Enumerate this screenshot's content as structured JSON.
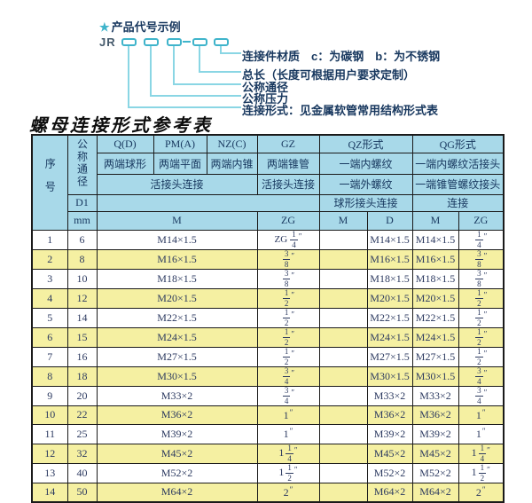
{
  "colors": {
    "header-bg": "#a8d9e9",
    "alt-bg": "#f5f0a2",
    "border": "#1a1a1a",
    "accent": "#3fb4cb",
    "line": "#8ad6e4",
    "navy": "#17375e",
    "cell-text": "#2c3a60"
  },
  "diagram": {
    "star": "★",
    "heading": "产品代号示例",
    "code_prefix": "JR",
    "dash": "–",
    "labels": [
      "连接件材质　c：为碳钢　b：为不锈钢",
      "总长（长度可根据用户要求定制）",
      "公称通径",
      "公称压力",
      "连接形式：见金属软管常用结构形式表"
    ]
  },
  "table": {
    "title": "螺母连接形式参考表",
    "inch_mark": "″",
    "header": {
      "seq": "序号",
      "dn": "公称通径",
      "d1": "D1",
      "mm": "mm",
      "groups": [
        "Q(D)",
        "PM(A)",
        "NZ(C)",
        "GZ",
        "QZ形式",
        "QG形式"
      ],
      "ends": [
        "两端球形",
        "两端平面",
        "两端内锥",
        "两端锥管",
        "一端内螺纹",
        "一端内螺纹活接头"
      ],
      "conn": [
        "活接头连接",
        "活接头连接",
        "一端外螺纹",
        "一端锥管螺纹接头"
      ],
      "conn2": [
        "球形接头连接",
        "连接"
      ],
      "units": [
        "M",
        "ZG",
        "M",
        "D",
        "M",
        "ZG"
      ]
    },
    "rows": [
      {
        "no": "1",
        "dn": "6",
        "m": "M14×1.5",
        "gz": {
          "pre": "ZG",
          "n": "1",
          "d": "4"
        },
        "qz_m": "",
        "qz_d": "M14×1.5",
        "qg_m": "M14×1.5",
        "qg_zg": {
          "n": "1",
          "d": "4"
        }
      },
      {
        "no": "2",
        "dn": "8",
        "m": "M16×1.5",
        "gz": {
          "n": "3",
          "d": "8"
        },
        "qz_m": "",
        "qz_d": "M16×1.5",
        "qg_m": "M16×1.5",
        "qg_zg": {
          "n": "3",
          "d": "8"
        }
      },
      {
        "no": "3",
        "dn": "10",
        "m": "M18×1.5",
        "gz": {
          "n": "3",
          "d": "8"
        },
        "qz_m": "",
        "qz_d": "M18×1.5",
        "qg_m": "M18×1.5",
        "qg_zg": {
          "n": "3",
          "d": "8"
        }
      },
      {
        "no": "4",
        "dn": "12",
        "m": "M20×1.5",
        "gz": {
          "n": "1",
          "d": "2"
        },
        "qz_m": "",
        "qz_d": "M20×1.5",
        "qg_m": "M20×1.5",
        "qg_zg": {
          "n": "1",
          "d": "2"
        }
      },
      {
        "no": "5",
        "dn": "14",
        "m": "M22×1.5",
        "gz": {
          "n": "1",
          "d": "2"
        },
        "qz_m": "",
        "qz_d": "M22×1.5",
        "qg_m": "M22×1.5",
        "qg_zg": {
          "n": "1",
          "d": "2"
        }
      },
      {
        "no": "6",
        "dn": "15",
        "m": "M24×1.5",
        "gz": {
          "n": "1",
          "d": "2"
        },
        "qz_m": "",
        "qz_d": "M24×1.5",
        "qg_m": "M24×1.5",
        "qg_zg": {
          "n": "1",
          "d": "2"
        }
      },
      {
        "no": "7",
        "dn": "16",
        "m": "M27×1.5",
        "gz": {
          "n": "1",
          "d": "2"
        },
        "qz_m": "",
        "qz_d": "M27×1.5",
        "qg_m": "M27×1.5",
        "qg_zg": {
          "n": "1",
          "d": "2"
        }
      },
      {
        "no": "8",
        "dn": "18",
        "m": "M30×1.5",
        "gz": {
          "n": "3",
          "d": "4"
        },
        "qz_m": "",
        "qz_d": "M30×1.5",
        "qg_m": "M30×1.5",
        "qg_zg": {
          "n": "3",
          "d": "4"
        }
      },
      {
        "no": "9",
        "dn": "20",
        "m": "M33×2",
        "gz": {
          "n": "3",
          "d": "4"
        },
        "qz_m": "",
        "qz_d": "M33×2",
        "qg_m": "M33×2",
        "qg_zg": {
          "n": "3",
          "d": "4"
        }
      },
      {
        "no": "10",
        "dn": "22",
        "m": "M36×2",
        "gz": {
          "w": "1"
        },
        "qz_m": "",
        "qz_d": "M36×2",
        "qg_m": "M36×2",
        "qg_zg": {
          "w": "1"
        }
      },
      {
        "no": "11",
        "dn": "25",
        "m": "M39×2",
        "gz": {
          "w": "1"
        },
        "qz_m": "",
        "qz_d": "M39×2",
        "qg_m": "M39×2",
        "qg_zg": {
          "w": "1"
        }
      },
      {
        "no": "12",
        "dn": "32",
        "m": "M45×2",
        "gz": {
          "w": "1",
          "n": "1",
          "d": "4"
        },
        "qz_m": "",
        "qz_d": "M45×2",
        "qg_m": "M45×2",
        "qg_zg": {
          "w": "1",
          "n": "1",
          "d": "4"
        }
      },
      {
        "no": "13",
        "dn": "40",
        "m": "M52×2",
        "gz": {
          "w": "1",
          "n": "1",
          "d": "2"
        },
        "qz_m": "",
        "qz_d": "M52×2",
        "qg_m": "M52×2",
        "qg_zg": {
          "w": "1",
          "n": "1",
          "d": "2"
        }
      },
      {
        "no": "14",
        "dn": "50",
        "m": "M64×2",
        "gz": {
          "w": "2"
        },
        "qz_m": "",
        "qz_d": "M64×2",
        "qg_m": "M64×2",
        "qg_zg": {
          "w": "2"
        }
      }
    ]
  }
}
